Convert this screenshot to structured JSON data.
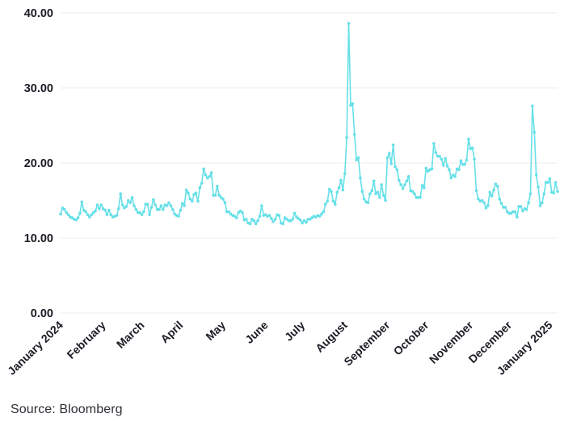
{
  "source": {
    "label": "Source: Bloomberg"
  },
  "colors": {
    "line": "#66E0E8",
    "grid": "#ececec",
    "tick_text": "#1b1c24",
    "source_text": "#2e3037",
    "background": "#ffffff"
  },
  "chart_data": {
    "type": "line",
    "title": "",
    "xlabel": "",
    "ylabel": "",
    "ylim": [
      0,
      40
    ],
    "yticks": [
      0,
      10,
      20,
      30,
      40
    ],
    "ytick_labels": [
      "0.00",
      "10.00",
      "20.00",
      "30.00",
      "40.00"
    ],
    "grid": "horizontal-only",
    "legend": "none",
    "marker": "dot",
    "x_ticks": [
      {
        "label": "January 2024",
        "index": 0
      },
      {
        "label": "February",
        "index": 22
      },
      {
        "label": "March",
        "index": 42
      },
      {
        "label": "April",
        "index": 62
      },
      {
        "label": "May",
        "index": 84
      },
      {
        "label": "June",
        "index": 106
      },
      {
        "label": "July",
        "index": 125
      },
      {
        "label": "August",
        "index": 147
      },
      {
        "label": "September",
        "index": 169
      },
      {
        "label": "October",
        "index": 189
      },
      {
        "label": "November",
        "index": 212
      },
      {
        "label": "December",
        "index": 232
      },
      {
        "label": "January 2025",
        "index": 253
      }
    ],
    "values": [
      13.2,
      14.0,
      13.8,
      13.4,
      13.1,
      12.8,
      12.7,
      12.5,
      12.4,
      12.7,
      13.3,
      14.8,
      13.7,
      13.5,
      13.1,
      12.8,
      13.1,
      13.4,
      13.6,
      14.4,
      13.9,
      14.4,
      13.9,
      13.7,
      13.1,
      13.7,
      13.1,
      12.8,
      12.9,
      13.0,
      13.9,
      15.9,
      14.4,
      14.0,
      14.2,
      15.0,
      14.7,
      15.4,
      14.3,
      13.8,
      13.4,
      13.4,
      13.1,
      13.5,
      14.5,
      14.5,
      13.1,
      14.1,
      15.1,
      14.4,
      13.8,
      13.8,
      14.3,
      13.8,
      14.4,
      14.3,
      14.7,
      14.3,
      13.8,
      13.2,
      13.0,
      12.9,
      13.7,
      14.6,
      14.3,
      16.4,
      16.0,
      15.2,
      14.9,
      15.8,
      16.0,
      14.9,
      16.7,
      17.3,
      19.2,
      18.4,
      18.0,
      18.2,
      18.7,
      15.7,
      15.7,
      16.9,
      15.7,
      15.4,
      15.2,
      14.7,
      13.5,
      13.5,
      13.2,
      13.0,
      12.9,
      12.7,
      13.4,
      13.6,
      13.4,
      12.4,
      12.5,
      12.0,
      11.9,
      12.5,
      12.3,
      11.9,
      12.3,
      12.9,
      14.3,
      13.0,
      13.1,
      12.9,
      13.0,
      12.6,
      12.2,
      12.5,
      13.1,
      13.0,
      12.0,
      11.9,
      12.7,
      12.5,
      12.3,
      12.3,
      12.5,
      13.3,
      12.8,
      12.6,
      12.4,
      12.0,
      12.3,
      12.1,
      12.5,
      12.5,
      12.7,
      12.9,
      12.8,
      13.0,
      12.9,
      13.2,
      13.5,
      14.5,
      14.9,
      16.5,
      16.2,
      14.9,
      14.5,
      16.1,
      16.7,
      17.7,
      16.4,
      18.6,
      23.4,
      38.6,
      27.7,
      27.9,
      23.8,
      20.4,
      20.7,
      18.0,
      16.2,
      15.2,
      14.8,
      14.7,
      15.9,
      16.3,
      17.6,
      15.9,
      16.1,
      15.4,
      17.1,
      15.7,
      15.0,
      20.7,
      21.3,
      19.9,
      22.4,
      19.5,
      19.1,
      17.7,
      17.1,
      16.6,
      17.1,
      17.6,
      18.2,
      16.3,
      16.2,
      15.9,
      15.4,
      15.4,
      15.4,
      17.0,
      16.7,
      19.3,
      18.9,
      19.1,
      19.2,
      22.6,
      21.4,
      20.9,
      20.9,
      20.5,
      19.7,
      20.6,
      19.6,
      19.1,
      18.0,
      18.4,
      18.2,
      19.2,
      19.1,
      20.3,
      19.8,
      19.8,
      20.4,
      23.2,
      21.9,
      22.0,
      20.5,
      16.3,
      15.2,
      14.9,
      15.0,
      14.7,
      14.0,
      14.3,
      16.1,
      15.6,
      16.4,
      17.2,
      16.9,
      15.2,
      14.6,
      14.1,
      14.1,
      13.5,
      13.3,
      13.3,
      13.5,
      13.5,
      12.8,
      14.2,
      14.2,
      13.6,
      13.9,
      13.8,
      14.7,
      15.9,
      27.6,
      24.1,
      18.4,
      16.8,
      14.3,
      14.7,
      15.9,
      17.4,
      17.4,
      17.9,
      16.1,
      16.0,
      17.4,
      16.2
    ]
  }
}
